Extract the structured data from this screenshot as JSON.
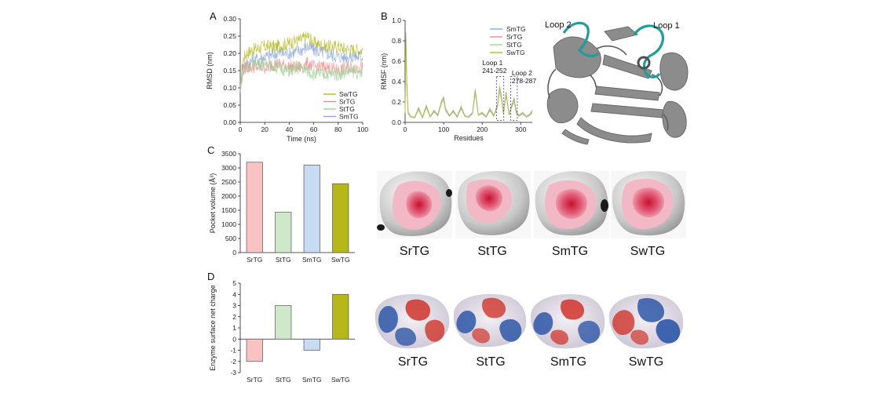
{
  "panel_labels": [
    "A",
    "B",
    "C",
    "D"
  ],
  "colors": {
    "SwTG": "#b5b81b",
    "SrTG": "#f08a8a",
    "StTG": "#9fd39a",
    "SmTG": "#8ea8dc",
    "axis": "#222222",
    "protein_gray": "#8a8a8a",
    "loop_teal": "#1f9c9c"
  },
  "structure": {
    "loop_labels": [
      "Loop 2",
      "Loop 1"
    ]
  },
  "pocket_images": {
    "labels": [
      "SrTG",
      "StTG",
      "SmTG",
      "SwTG"
    ]
  },
  "charge_images": {
    "labels": [
      "SrTG",
      "StTG",
      "SmTG",
      "SwTG"
    ]
  },
  "chart_data": [
    {
      "id": "A",
      "type": "line",
      "xlabel": "Time (ns)",
      "ylabel": "RMSD (nm)",
      "xlim": [
        0,
        100
      ],
      "ylim": [
        0,
        0.3
      ],
      "xticks": [
        0,
        20,
        40,
        60,
        80,
        100
      ],
      "yticks": [
        "0.00",
        "0.05",
        "0.10",
        "0.15",
        "0.20",
        "0.25",
        "0.30"
      ],
      "legend_position": "bottom-right",
      "legend": [
        "SwTG",
        "SrTG",
        "StTG",
        "SmTG"
      ],
      "series": [
        {
          "name": "SwTG",
          "x": [
            0,
            2,
            5,
            10,
            20,
            30,
            40,
            50,
            55,
            60,
            70,
            80,
            90,
            100
          ],
          "y": [
            0.1,
            0.18,
            0.2,
            0.21,
            0.22,
            0.22,
            0.23,
            0.24,
            0.25,
            0.23,
            0.22,
            0.22,
            0.21,
            0.21
          ]
        },
        {
          "name": "SmTG",
          "x": [
            0,
            2,
            5,
            10,
            20,
            30,
            40,
            50,
            55,
            60,
            70,
            80,
            90,
            100
          ],
          "y": [
            0.1,
            0.16,
            0.17,
            0.18,
            0.19,
            0.2,
            0.2,
            0.21,
            0.22,
            0.21,
            0.2,
            0.19,
            0.19,
            0.19
          ]
        },
        {
          "name": "SrTG",
          "x": [
            0,
            2,
            5,
            10,
            20,
            30,
            40,
            50,
            55,
            60,
            70,
            80,
            90,
            100
          ],
          "y": [
            0.1,
            0.15,
            0.16,
            0.16,
            0.16,
            0.17,
            0.16,
            0.16,
            0.17,
            0.16,
            0.16,
            0.15,
            0.16,
            0.16
          ]
        },
        {
          "name": "StTG",
          "x": [
            0,
            2,
            5,
            10,
            20,
            30,
            40,
            50,
            55,
            60,
            70,
            80,
            90,
            100
          ],
          "y": [
            0.1,
            0.14,
            0.16,
            0.17,
            0.17,
            0.16,
            0.15,
            0.16,
            0.15,
            0.14,
            0.14,
            0.14,
            0.15,
            0.14
          ]
        }
      ]
    },
    {
      "id": "B",
      "type": "line",
      "xlabel": "Residues",
      "ylabel": "RMSF (nm)",
      "xlim": [
        0,
        330
      ],
      "ylim": [
        0,
        1.0
      ],
      "xticks": [
        0,
        100,
        200,
        300
      ],
      "yticks": [
        "0.0",
        "0.2",
        "0.4",
        "0.6",
        "0.8",
        "1.0"
      ],
      "legend_position": "top-right",
      "legend": [
        "SmTG",
        "SrTG",
        "StTG",
        "SwTG"
      ],
      "annotations": [
        {
          "text_lines": [
            "Loop 1",
            "241-252"
          ],
          "x_range": [
            241,
            252
          ]
        },
        {
          "text_lines": [
            "Loop 2",
            "278-287"
          ],
          "x_range": [
            278,
            287
          ]
        }
      ],
      "series": [
        {
          "name": "SmTG",
          "x": [
            0,
            2,
            4,
            8,
            15,
            25,
            35,
            45,
            55,
            65,
            75,
            85,
            95,
            100,
            105,
            115,
            125,
            135,
            145,
            155,
            165,
            175,
            182,
            190,
            200,
            210,
            220,
            230,
            240,
            245,
            250,
            255,
            262,
            270,
            278,
            283,
            288,
            295,
            305,
            315,
            325,
            330
          ],
          "y": [
            0.12,
            0.88,
            0.45,
            0.1,
            0.06,
            0.05,
            0.15,
            0.05,
            0.17,
            0.06,
            0.12,
            0.08,
            0.22,
            0.25,
            0.14,
            0.07,
            0.12,
            0.06,
            0.16,
            0.07,
            0.06,
            0.1,
            0.33,
            0.08,
            0.1,
            0.06,
            0.14,
            0.07,
            0.18,
            0.36,
            0.26,
            0.1,
            0.3,
            0.08,
            0.19,
            0.24,
            0.12,
            0.07,
            0.1,
            0.06,
            0.09,
            0.12
          ]
        },
        {
          "name": "SrTG",
          "x": [
            0,
            2,
            4,
            8,
            15,
            25,
            35,
            45,
            55,
            65,
            75,
            85,
            95,
            100,
            105,
            115,
            125,
            135,
            145,
            155,
            165,
            175,
            182,
            190,
            200,
            210,
            220,
            230,
            240,
            245,
            250,
            255,
            262,
            270,
            278,
            283,
            288,
            295,
            305,
            315,
            325,
            330
          ],
          "y": [
            0.1,
            0.8,
            0.4,
            0.09,
            0.05,
            0.05,
            0.13,
            0.05,
            0.15,
            0.05,
            0.11,
            0.07,
            0.2,
            0.23,
            0.12,
            0.06,
            0.11,
            0.05,
            0.14,
            0.06,
            0.05,
            0.09,
            0.3,
            0.07,
            0.09,
            0.05,
            0.12,
            0.06,
            0.16,
            0.33,
            0.24,
            0.09,
            0.28,
            0.07,
            0.17,
            0.22,
            0.1,
            0.06,
            0.09,
            0.05,
            0.08,
            0.1
          ]
        },
        {
          "name": "StTG",
          "x": [
            0,
            2,
            4,
            8,
            15,
            25,
            35,
            45,
            55,
            65,
            75,
            85,
            95,
            100,
            105,
            115,
            125,
            135,
            145,
            155,
            165,
            175,
            182,
            190,
            200,
            210,
            220,
            230,
            240,
            245,
            250,
            255,
            262,
            270,
            278,
            283,
            288,
            295,
            305,
            315,
            325,
            330
          ],
          "y": [
            0.09,
            0.75,
            0.38,
            0.08,
            0.05,
            0.04,
            0.12,
            0.04,
            0.14,
            0.05,
            0.1,
            0.06,
            0.19,
            0.21,
            0.11,
            0.06,
            0.1,
            0.05,
            0.13,
            0.06,
            0.05,
            0.08,
            0.28,
            0.07,
            0.08,
            0.05,
            0.11,
            0.06,
            0.15,
            0.3,
            0.22,
            0.08,
            0.26,
            0.07,
            0.16,
            0.2,
            0.09,
            0.06,
            0.08,
            0.05,
            0.07,
            0.09
          ]
        },
        {
          "name": "SwTG",
          "x": [
            0,
            2,
            4,
            8,
            15,
            25,
            35,
            45,
            55,
            65,
            75,
            85,
            95,
            100,
            105,
            115,
            125,
            135,
            145,
            155,
            165,
            175,
            182,
            190,
            200,
            210,
            220,
            230,
            240,
            245,
            250,
            255,
            262,
            270,
            278,
            283,
            288,
            295,
            305,
            315,
            325,
            330
          ],
          "y": [
            0.11,
            0.82,
            0.42,
            0.09,
            0.06,
            0.05,
            0.14,
            0.05,
            0.16,
            0.06,
            0.11,
            0.07,
            0.21,
            0.24,
            0.13,
            0.06,
            0.11,
            0.05,
            0.15,
            0.06,
            0.05,
            0.09,
            0.31,
            0.07,
            0.09,
            0.05,
            0.13,
            0.06,
            0.17,
            0.34,
            0.25,
            0.09,
            0.29,
            0.07,
            0.18,
            0.23,
            0.11,
            0.06,
            0.09,
            0.05,
            0.08,
            0.11
          ]
        }
      ]
    },
    {
      "id": "C",
      "type": "bar",
      "ylabel": "Pocket volume (Å³)",
      "ylim": [
        0,
        3500
      ],
      "yticks": [
        "0",
        "500",
        "1000",
        "1500",
        "2000",
        "2500",
        "3000",
        "3500"
      ],
      "categories": [
        "SrTG",
        "StTG",
        "SmTG",
        "SwTG"
      ],
      "values": [
        3200,
        1430,
        3100,
        2440
      ],
      "bar_fill": [
        "#f9c3c3",
        "#cfe8c8",
        "#c7dcf2",
        "#b5b81b"
      ]
    },
    {
      "id": "D",
      "type": "bar",
      "ylabel": "Enzyme surface net charge",
      "ylim": [
        -3,
        5
      ],
      "yticks": [
        "-3",
        "-2",
        "-1",
        "0",
        "1",
        "2",
        "3",
        "4",
        "5"
      ],
      "categories": [
        "SrTG",
        "StTG",
        "SmTG",
        "SwTG"
      ],
      "values": [
        -2,
        3,
        -1,
        4
      ],
      "bar_fill": [
        "#f9c3c3",
        "#cfe8c8",
        "#c7dcf2",
        "#b5b81b"
      ]
    }
  ]
}
